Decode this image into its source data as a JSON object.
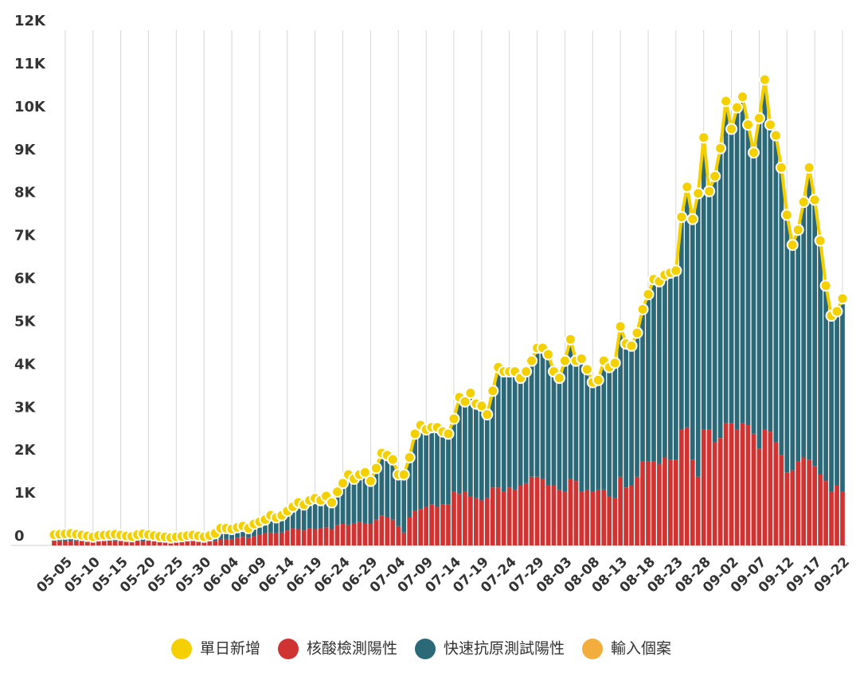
{
  "chart_data": {
    "type": "bar",
    "stacked": true,
    "categories": [
      null,
      null,
      "05-05",
      null,
      null,
      null,
      null,
      "05-10",
      null,
      null,
      null,
      null,
      "05-15",
      null,
      null,
      null,
      null,
      "05-20",
      null,
      null,
      null,
      null,
      "05-25",
      null,
      null,
      null,
      null,
      "05-30",
      null,
      null,
      null,
      null,
      "06-04",
      null,
      null,
      null,
      null,
      "06-09",
      null,
      null,
      null,
      null,
      "06-14",
      null,
      null,
      null,
      null,
      "06-19",
      null,
      null,
      null,
      null,
      "06-24",
      null,
      null,
      null,
      null,
      "06-29",
      null,
      null,
      null,
      null,
      "07-04",
      null,
      null,
      null,
      null,
      "07-09",
      null,
      null,
      null,
      null,
      "07-14",
      null,
      null,
      null,
      null,
      "07-19",
      null,
      null,
      null,
      null,
      "07-24",
      null,
      null,
      null,
      null,
      "07-29",
      null,
      null,
      null,
      null,
      "08-03",
      null,
      null,
      null,
      null,
      "08-08",
      null,
      null,
      null,
      null,
      "08-13",
      null,
      null,
      null,
      null,
      "08-18",
      null,
      null,
      null,
      null,
      "08-23",
      null,
      null,
      null,
      null,
      "08-28",
      null,
      null,
      null,
      null,
      "09-02",
      null,
      null,
      null,
      null,
      "09-07",
      null,
      null,
      null,
      null,
      "09-12",
      null,
      null,
      null,
      null,
      "09-17",
      null,
      null,
      null,
      null,
      "09-22"
    ],
    "series": [
      {
        "name": "單日新增",
        "type": "line",
        "color": "#f5d000",
        "values": [
          250,
          260,
          270,
          280,
          260,
          240,
          220,
          200,
          230,
          240,
          250,
          260,
          240,
          220,
          210,
          250,
          270,
          250,
          230,
          210,
          200,
          180,
          200,
          210,
          230,
          240,
          220,
          200,
          230,
          280,
          400,
          400,
          380,
          420,
          450,
          400,
          500,
          550,
          600,
          700,
          650,
          700,
          800,
          900,
          1000,
          950,
          1050,
          1100,
          1050,
          1150,
          1000,
          1250,
          1450,
          1650,
          1550,
          1650,
          1700,
          1500,
          1800,
          2150,
          2100,
          2000,
          1650,
          1650,
          2050,
          2600,
          2800,
          2700,
          2750,
          2750,
          2650,
          2600,
          2950,
          3450,
          3350,
          3550,
          3300,
          3250,
          3050,
          3600,
          4150,
          4050,
          4050,
          4050,
          3900,
          4050,
          4300,
          4600,
          4600,
          4450,
          4050,
          3900,
          4300,
          4800,
          4300,
          4350,
          4100,
          3800,
          3850,
          4300,
          4150,
          4250,
          5100,
          4700,
          4650,
          4950,
          5500,
          5850,
          6200,
          6150,
          6300,
          6350,
          6400,
          7650,
          8350,
          7600,
          8200,
          9500,
          8250,
          8600,
          9250,
          10350,
          9700,
          10200,
          10450,
          9800,
          9150,
          9950,
          10850,
          9800,
          9550,
          8800,
          7700,
          7000,
          7350,
          8000,
          8800,
          8050,
          7100,
          6050,
          5350,
          5450,
          5750
        ]
      },
      {
        "name": "核酸檢測陽性",
        "color": "#d03432",
        "values": [
          100,
          100,
          100,
          100,
          100,
          100,
          100,
          100,
          100,
          100,
          100,
          100,
          100,
          100,
          100,
          100,
          100,
          100,
          100,
          100,
          100,
          100,
          100,
          100,
          100,
          100,
          100,
          100,
          100,
          100,
          150,
          150,
          150,
          180,
          200,
          180,
          220,
          250,
          280,
          300,
          280,
          300,
          350,
          400,
          380,
          350,
          400,
          380,
          400,
          420,
          380,
          480,
          500,
          480,
          520,
          550,
          520,
          500,
          600,
          700,
          650,
          600,
          450,
          300,
          650,
          800,
          850,
          900,
          950,
          900,
          950,
          950,
          1250,
          1200,
          1250,
          1150,
          1100,
          1050,
          1100,
          1350,
          1350,
          1250,
          1350,
          1300,
          1400,
          1450,
          1600,
          1600,
          1550,
          1400,
          1400,
          1300,
          1250,
          1550,
          1500,
          1250,
          1300,
          1250,
          1300,
          1300,
          1150,
          1100,
          1600,
          1350,
          1400,
          1600,
          1950,
          1950,
          1950,
          1900,
          2050,
          2000,
          2000,
          2700,
          2750,
          2000,
          1600,
          2700,
          2700,
          2400,
          2500,
          2850,
          2850,
          2700,
          2850,
          2800,
          2600,
          2250,
          2700,
          2650,
          2400,
          2100,
          1700,
          1750,
          1950,
          2050,
          2000,
          1850,
          1650,
          1500,
          1250,
          1400,
          1250
        ]
      },
      {
        "name": "快速抗原測試陽性",
        "color": "#2b6878",
        "values": [
          110,
          120,
          130,
          140,
          120,
          100,
          80,
          60,
          90,
          100,
          110,
          120,
          100,
          80,
          70,
          110,
          130,
          110,
          90,
          70,
          60,
          40,
          60,
          70,
          90,
          100,
          80,
          60,
          90,
          140,
          210,
          210,
          190,
          200,
          210,
          180,
          240,
          260,
          280,
          360,
          330,
          360,
          410,
          460,
          580,
          560,
          610,
          680,
          610,
          690,
          580,
          730,
          910,
          1130,
          990,
          1060,
          1140,
          960,
          1160,
          1410,
          1410,
          1360,
          1160,
          1310,
          1360,
          1760,
          1910,
          1760,
          1760,
          1810,
          1660,
          1610,
          1660,
          2210,
          2060,
          2360,
          2160,
          2160,
          1910,
          2210,
          2760,
          2760,
          2660,
          2710,
          2460,
          2560,
          2660,
          2960,
          3010,
          3010,
          2610,
          2560,
          3010,
          3210,
          2760,
          3060,
          2760,
          2510,
          2510,
          2960,
          2960,
          3110,
          3460,
          3310,
          3210,
          3310,
          3510,
          3860,
          4210,
          4210,
          4210,
          4310,
          4360,
          4910,
          5560,
          5560,
          6560,
          6760,
          5510,
          6160,
          6710,
          7460,
          6810,
          7460,
          7560,
          6960,
          6510,
          7660,
          8110,
          7110,
          7110,
          6660,
          5960,
          5210,
          5360,
          5910,
          6760,
          6160,
          5410,
          4510,
          4060,
          4010,
          4460
        ]
      },
      {
        "name": "輸入個案",
        "color": "#f2ad3c",
        "values": [
          40,
          40,
          40,
          40,
          40,
          40,
          40,
          40,
          40,
          40,
          40,
          40,
          40,
          40,
          40,
          40,
          40,
          40,
          40,
          40,
          40,
          40,
          40,
          40,
          40,
          40,
          40,
          40,
          40,
          40,
          40,
          40,
          40,
          40,
          40,
          40,
          40,
          40,
          40,
          40,
          40,
          40,
          40,
          40,
          40,
          40,
          40,
          40,
          40,
          40,
          40,
          40,
          40,
          40,
          40,
          40,
          40,
          40,
          40,
          40,
          40,
          40,
          40,
          40,
          40,
          40,
          40,
          40,
          40,
          40,
          40,
          40,
          40,
          40,
          40,
          40,
          40,
          40,
          40,
          40,
          40,
          40,
          40,
          40,
          40,
          40,
          40,
          40,
          40,
          40,
          40,
          40,
          40,
          40,
          40,
          40,
          40,
          40,
          40,
          40,
          40,
          40,
          40,
          40,
          40,
          40,
          40,
          40,
          40,
          40,
          40,
          40,
          40,
          40,
          40,
          40,
          40,
          40,
          40,
          40,
          40,
          40,
          40,
          40,
          40,
          40,
          40,
          40,
          40,
          40,
          40,
          40,
          40,
          40,
          40,
          40,
          40,
          40,
          40,
          40,
          40,
          40,
          40
        ]
      }
    ],
    "ylim": [
      0,
      12000
    ],
    "yticks": [
      0,
      {
        "value": 1000,
        "label": "1K"
      },
      {
        "value": 2000,
        "label": "2K"
      },
      {
        "value": 3000,
        "label": "3K"
      },
      {
        "value": 4000,
        "label": "4K"
      },
      {
        "value": 5000,
        "label": "5K"
      },
      {
        "value": 6000,
        "label": "6K"
      },
      {
        "value": 7000,
        "label": "7K"
      },
      {
        "value": 8000,
        "label": "8K"
      },
      {
        "value": 9000,
        "label": "9K"
      },
      {
        "value": 10000,
        "label": "10K"
      },
      {
        "value": 11000,
        "label": "11K"
      },
      {
        "value": 12000,
        "label": "12K"
      }
    ],
    "grid": true,
    "legend": "bottom"
  }
}
